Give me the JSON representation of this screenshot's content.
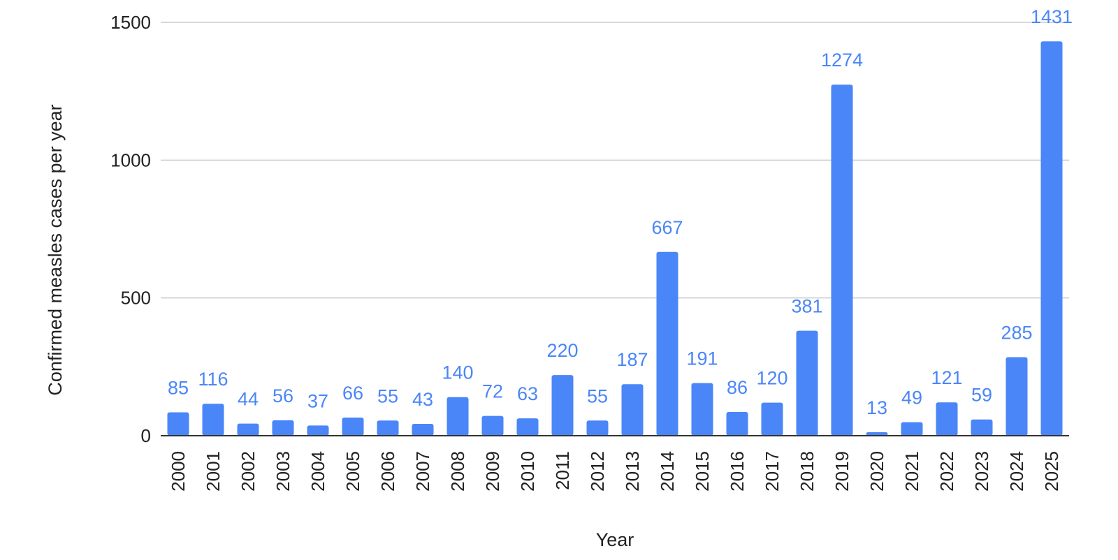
{
  "chart_data": {
    "type": "bar",
    "title": "",
    "xlabel": "Year",
    "ylabel": "Confirmed measles cases per year",
    "ylim": [
      0,
      1500
    ],
    "yticks": [
      0,
      500,
      1000,
      1500
    ],
    "grid": true,
    "categories": [
      "2000",
      "2001",
      "2002",
      "2003",
      "2004",
      "2005",
      "2006",
      "2007",
      "2008",
      "2009",
      "2010",
      "2011",
      "2012",
      "2013",
      "2014",
      "2015",
      "2016",
      "2017",
      "2018",
      "2019",
      "2020",
      "2021",
      "2022",
      "2023",
      "2024",
      "2025"
    ],
    "values": [
      85,
      116,
      44,
      56,
      37,
      66,
      55,
      43,
      140,
      72,
      63,
      220,
      55,
      187,
      667,
      191,
      86,
      120,
      381,
      1274,
      13,
      49,
      121,
      59,
      285,
      1431
    ],
    "bar_color": "#4a86f7",
    "label_color": "#4a86f7",
    "grid_color": "#cccccc"
  }
}
